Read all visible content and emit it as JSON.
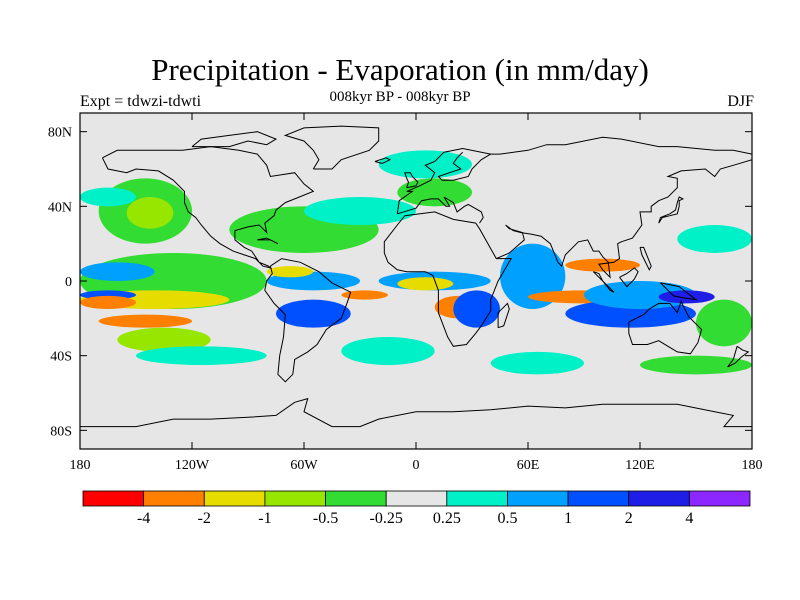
{
  "title": "Precipitation - Evaporation (in mm/day)",
  "subtitle": "008kyr BP - 008kyr BP",
  "experiment": "Expt = tdwzi-tdwti",
  "season": "DJF",
  "map": {
    "projection": "cylindrical equidistant",
    "background_color": "#e6e6e6",
    "lat_ticks": [
      {
        "value": 80,
        "label": "80N"
      },
      {
        "value": 40,
        "label": "40N"
      },
      {
        "value": 0,
        "label": "0"
      },
      {
        "value": -40,
        "label": "40S"
      },
      {
        "value": -80,
        "label": "80S"
      }
    ],
    "lon_ticks": [
      {
        "value": -180,
        "label": "180"
      },
      {
        "value": -120,
        "label": "120W"
      },
      {
        "value": -60,
        "label": "60W"
      },
      {
        "value": 0,
        "label": "0"
      },
      {
        "value": 60,
        "label": "60E"
      },
      {
        "value": 120,
        "label": "120E"
      },
      {
        "value": 180,
        "label": "180"
      }
    ]
  },
  "colorbar": {
    "colors": [
      "#ff0000",
      "#ff8000",
      "#e6dc00",
      "#96e600",
      "#32dc32",
      "#e6e6e6",
      "#00f0c8",
      "#00a0ff",
      "#0050ff",
      "#1e1ee6",
      "#8c28ff"
    ],
    "labels": [
      "-4",
      "-2",
      "-1",
      "-0.5",
      "-0.25",
      "0.25",
      "0.5",
      "1",
      "2",
      "4"
    ]
  },
  "fields": [
    {
      "level": "-0.25",
      "color": "#32dc32",
      "lon": [
        -170,
        -120
      ],
      "lat": [
        20,
        55
      ]
    },
    {
      "level": "-0.5",
      "color": "#96e600",
      "lon": [
        -155,
        -130
      ],
      "lat": [
        28,
        45
      ]
    },
    {
      "level": "0.25",
      "color": "#00f0c8",
      "lon": [
        -180,
        -150
      ],
      "lat": [
        40,
        50
      ]
    },
    {
      "level": "-0.25",
      "color": "#32dc32",
      "lon": [
        -100,
        -20
      ],
      "lat": [
        15,
        40
      ]
    },
    {
      "level": "0.25",
      "color": "#00f0c8",
      "lon": [
        -60,
        0
      ],
      "lat": [
        30,
        45
      ]
    },
    {
      "level": "-0.25",
      "color": "#32dc32",
      "lon": [
        -180,
        -80
      ],
      "lat": [
        -15,
        15
      ]
    },
    {
      "level": "-1",
      "color": "#e6dc00",
      "lon": [
        -180,
        -100
      ],
      "lat": [
        -15,
        -5
      ]
    },
    {
      "level": "1",
      "color": "#00a0ff",
      "lon": [
        -180,
        -140
      ],
      "lat": [
        0,
        10
      ]
    },
    {
      "level": "2",
      "color": "#0050ff",
      "lon": [
        -180,
        -150
      ],
      "lat": [
        -10,
        -5
      ]
    },
    {
      "level": "-2",
      "color": "#ff8000",
      "lon": [
        -180,
        -150
      ],
      "lat": [
        -15,
        -8
      ]
    },
    {
      "level": "-2",
      "color": "#ff8000",
      "lon": [
        -170,
        -120
      ],
      "lat": [
        -25,
        -18
      ]
    },
    {
      "level": "-0.5",
      "color": "#96e600",
      "lon": [
        -160,
        -110
      ],
      "lat": [
        -38,
        -25
      ]
    },
    {
      "level": "0.25",
      "color": "#00f0c8",
      "lon": [
        -150,
        -80
      ],
      "lat": [
        -45,
        -35
      ]
    },
    {
      "level": "1",
      "color": "#00a0ff",
      "lon": [
        -80,
        -30
      ],
      "lat": [
        -5,
        5
      ]
    },
    {
      "level": "2",
      "color": "#0050ff",
      "lon": [
        -75,
        -35
      ],
      "lat": [
        -25,
        -10
      ]
    },
    {
      "level": "-2",
      "color": "#ff8000",
      "lon": [
        -40,
        -15
      ],
      "lat": [
        -10,
        -5
      ]
    },
    {
      "level": "-1",
      "color": "#e6dc00",
      "lon": [
        -80,
        -55
      ],
      "lat": [
        2,
        8
      ]
    },
    {
      "level": "0.25",
      "color": "#00f0c8",
      "lon": [
        -40,
        10
      ],
      "lat": [
        -45,
        -30
      ]
    },
    {
      "level": "1",
      "color": "#00a0ff",
      "lon": [
        -20,
        40
      ],
      "lat": [
        -5,
        5
      ]
    },
    {
      "level": "-2",
      "color": "#ff8000",
      "lon": [
        10,
        35
      ],
      "lat": [
        -20,
        -8
      ]
    },
    {
      "level": "2",
      "color": "#0050ff",
      "lon": [
        20,
        45
      ],
      "lat": [
        -25,
        -5
      ]
    },
    {
      "level": "-1",
      "color": "#e6dc00",
      "lon": [
        -10,
        20
      ],
      "lat": [
        -5,
        2
      ]
    },
    {
      "level": "1",
      "color": "#00a0ff",
      "lon": [
        45,
        80
      ],
      "lat": [
        -15,
        20
      ]
    },
    {
      "level": "-2",
      "color": "#ff8000",
      "lon": [
        60,
        120
      ],
      "lat": [
        -12,
        -5
      ]
    },
    {
      "level": "2",
      "color": "#0050ff",
      "lon": [
        80,
        150
      ],
      "lat": [
        -25,
        -10
      ]
    },
    {
      "level": "1",
      "color": "#00a0ff",
      "lon": [
        90,
        150
      ],
      "lat": [
        -15,
        0
      ]
    },
    {
      "level": "-2",
      "color": "#ff8000",
      "lon": [
        80,
        120
      ],
      "lat": [
        5,
        12
      ]
    },
    {
      "level": "0.25",
      "color": "#00f0c8",
      "lon": [
        140,
        180
      ],
      "lat": [
        15,
        30
      ]
    },
    {
      "level": "-0.25",
      "color": "#32dc32",
      "lon": [
        150,
        180
      ],
      "lat": [
        -35,
        -10
      ]
    },
    {
      "level": "0.25",
      "color": "#00f0c8",
      "lon": [
        -20,
        30
      ],
      "lat": [
        55,
        70
      ]
    },
    {
      "level": "-0.25",
      "color": "#32dc32",
      "lon": [
        -10,
        30
      ],
      "lat": [
        40,
        55
      ]
    },
    {
      "level": "0.25",
      "color": "#00f0c8",
      "lon": [
        40,
        90
      ],
      "lat": [
        -50,
        -38
      ]
    },
    {
      "level": "-0.25",
      "color": "#32dc32",
      "lon": [
        120,
        180
      ],
      "lat": [
        -50,
        -40
      ]
    },
    {
      "level": "4",
      "color": "#1e1ee6",
      "lon": [
        130,
        160
      ],
      "lat": [
        -12,
        -5
      ]
    }
  ]
}
